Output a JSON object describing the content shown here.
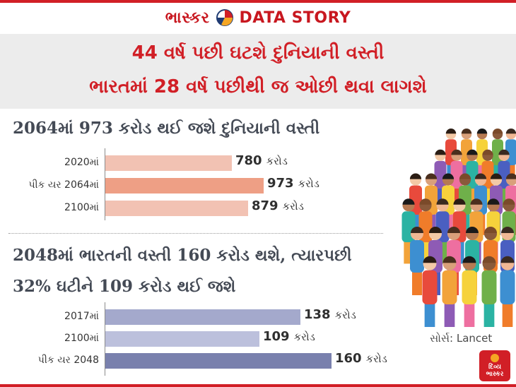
{
  "brand": {
    "name": "ભાસ્કર",
    "product": "DATA STORY"
  },
  "headline": {
    "line1": "44 વર્ષ પછી ઘટશે દુનિયાની વસ્તી",
    "line2": "ભારતમાં 28 વર્ષ પછીથી જ ઓછી થવા લાગશે"
  },
  "colors": {
    "headline_red": "#d11f26",
    "world_bar_light": "#f2c2b3",
    "world_bar_peak": "#ee9f85",
    "india_bar_mid": "#a4a9cc",
    "india_bar_light": "#bcc0dc",
    "india_bar_peak": "#7980ad"
  },
  "source": "સોર્સ: Lancet",
  "badge": {
    "line1": "દિવ્ય",
    "line2": "ભાસ્કર"
  },
  "icons": [
    "brand-pie-logo-icon",
    "crowd-illustration-icon",
    "divya-bhaskar-badge-icon"
  ],
  "chart_data": [
    {
      "type": "bar",
      "orientation": "horizontal",
      "title": "2064માં 973 કરોડ થઈ જશે દુનિયાની વસ્તી",
      "categories": [
        "2020માં",
        "પીક યર 2064માં",
        "2100માં"
      ],
      "values": [
        780,
        973,
        879
      ],
      "unit": "કરોડ",
      "xlim": [
        0,
        1000
      ],
      "grid": false,
      "legend": false
    },
    {
      "type": "bar",
      "orientation": "horizontal",
      "title": "2048માં ભારતની વસ્તી 160 કરોડ થશે, ત્યારપછી 32% ઘટીને 109 કરોડ થઈ જશે",
      "title_lines": [
        "2048માં ભારતની વસ્તી 160 કરોડ થશે, ત્યારપછી",
        "32% ઘટીને 109 કરોડ થઈ જશે"
      ],
      "categories": [
        "2017માં",
        "2100માં",
        "પીક યર 2048"
      ],
      "values": [
        138,
        109,
        160
      ],
      "unit": "કરોડ",
      "xlim": [
        0,
        200
      ],
      "grid": false,
      "legend": false
    }
  ]
}
